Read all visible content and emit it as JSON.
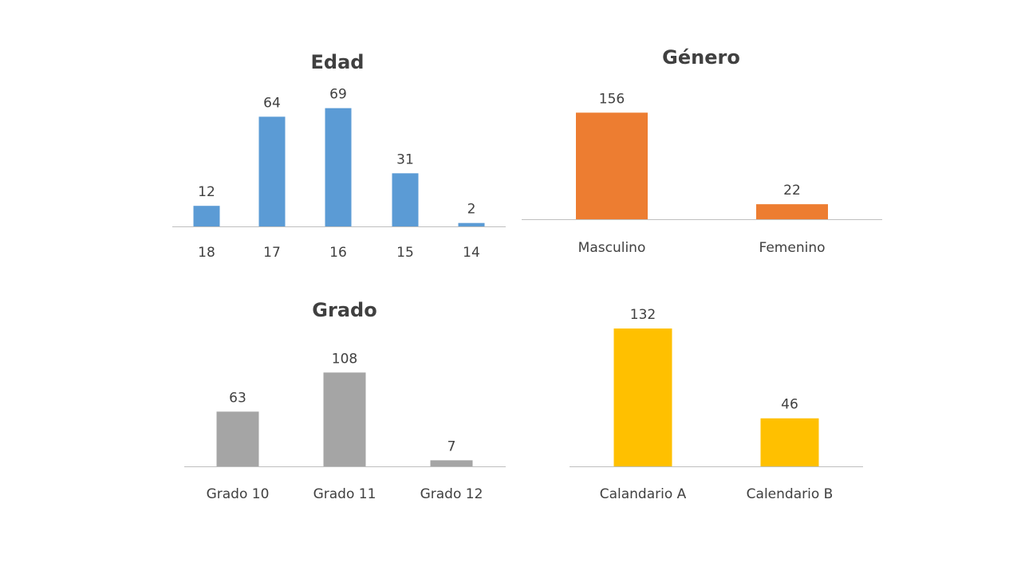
{
  "chart_data": [
    {
      "type": "bar",
      "title": "Edad",
      "categories": [
        "18",
        "17",
        "16",
        "15",
        "14"
      ],
      "values": [
        12,
        64,
        69,
        31,
        2
      ],
      "color": "#5B9BD5"
    },
    {
      "type": "bar",
      "title": "Género",
      "categories": [
        "Masculino",
        "Femenino"
      ],
      "values": [
        156,
        22
      ],
      "color": "#ED7D31"
    },
    {
      "type": "bar",
      "title": "Grado",
      "categories": [
        "Grado 10",
        "Grado 11",
        "Grado 12"
      ],
      "values": [
        63,
        108,
        7
      ],
      "color": "#A5A5A5"
    },
    {
      "type": "bar",
      "title": "",
      "categories": [
        "Calandario A",
        "Calendario B"
      ],
      "values": [
        132,
        46
      ],
      "color": "#FFC000"
    }
  ]
}
